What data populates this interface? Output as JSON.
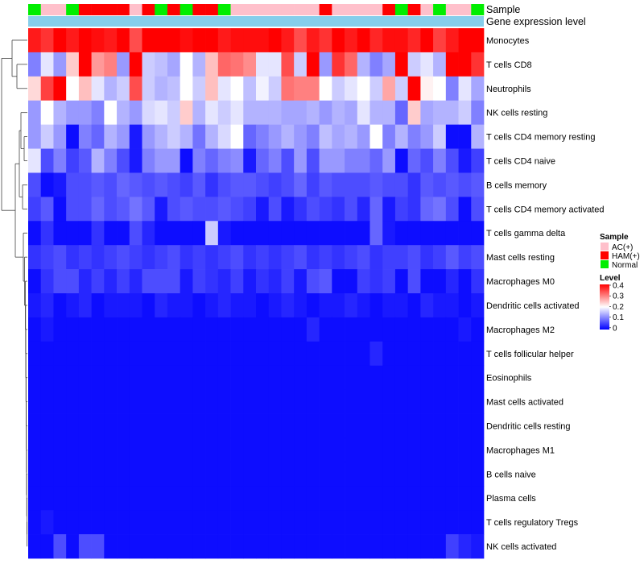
{
  "chart_data": {
    "type": "heatmap",
    "title": "",
    "annotations": {
      "sample_label": "Sample",
      "gene_expression_label": "Gene expression level"
    },
    "rows": [
      "Monocytes",
      "T cells CD8",
      "Neutrophils",
      "NK cells resting",
      "T cells CD4 memory resting",
      "T cells CD4 naive",
      "B cells memory",
      "T cells CD4 memory activated",
      "T cells gamma delta",
      "Mast cells resting",
      "Macrophages M0",
      "Dendritic cells activated",
      "Macrophages M2",
      "T cells follicular helper",
      "Eosinophils",
      "Mast cells activated",
      "Dendritic cells resting",
      "Macrophages M1",
      "B cells naive",
      "Plasma cells",
      "T cells regulatory  Tregs",
      "NK cells activated"
    ],
    "sample_groups": [
      "N",
      "AC",
      "AC",
      "N",
      "HAM",
      "HAM",
      "HAM",
      "HAM",
      "AC",
      "HAM",
      "N",
      "HAM",
      "N",
      "HAM",
      "HAM",
      "N",
      "AC",
      "AC",
      "AC",
      "AC",
      "AC",
      "AC",
      "AC",
      "HAM",
      "AC",
      "AC",
      "AC",
      "AC",
      "HAM",
      "N",
      "HAM",
      "AC",
      "N",
      "AC",
      "AC",
      "N"
    ],
    "values": [
      [
        0.38,
        0.36,
        0.4,
        0.38,
        0.4,
        0.39,
        0.38,
        0.4,
        0.34,
        0.4,
        0.41,
        0.4,
        0.39,
        0.4,
        0.41,
        0.38,
        0.39,
        0.39,
        0.39,
        0.4,
        0.38,
        0.34,
        0.38,
        0.36,
        0.4,
        0.38,
        0.41,
        0.37,
        0.39,
        0.39,
        0.37,
        0.4,
        0.35,
        0.38,
        0.41,
        0.4
      ],
      [
        0.1,
        0.18,
        0.12,
        0.24,
        0.42,
        0.28,
        0.3,
        0.12,
        0.42,
        0.16,
        0.15,
        0.13,
        0.2,
        0.14,
        0.25,
        0.32,
        0.31,
        0.29,
        0.18,
        0.18,
        0.34,
        0.16,
        0.4,
        0.12,
        0.36,
        0.32,
        0.14,
        0.1,
        0.13,
        0.41,
        0.16,
        0.18,
        0.14,
        0.42,
        0.42,
        0.36
      ],
      [
        0.23,
        0.35,
        0.4,
        0.2,
        0.25,
        0.18,
        0.14,
        0.16,
        0.34,
        0.16,
        0.14,
        0.15,
        0.2,
        0.16,
        0.25,
        0.18,
        0.2,
        0.15,
        0.19,
        0.16,
        0.31,
        0.3,
        0.3,
        0.2,
        0.16,
        0.18,
        0.2,
        0.16,
        0.27,
        0.16,
        0.42,
        0.21,
        0.2,
        0.1,
        0.18,
        0.13
      ],
      [
        0.12,
        0.2,
        0.14,
        0.12,
        0.12,
        0.1,
        0.2,
        0.14,
        0.12,
        0.17,
        0.18,
        0.16,
        0.24,
        0.14,
        0.18,
        0.16,
        0.18,
        0.14,
        0.14,
        0.14,
        0.13,
        0.13,
        0.14,
        0.12,
        0.14,
        0.13,
        0.18,
        0.14,
        0.14,
        0.08,
        0.24,
        0.13,
        0.14,
        0.14,
        0.16,
        0.1
      ],
      [
        0.12,
        0.16,
        0.12,
        0.01,
        0.1,
        0.08,
        0.14,
        0.12,
        0.02,
        0.12,
        0.14,
        0.16,
        0.14,
        0.09,
        0.14,
        0.17,
        0.2,
        0.08,
        0.1,
        0.12,
        0.14,
        0.12,
        0.1,
        0.15,
        0.13,
        0.14,
        0.12,
        0.2,
        0.1,
        0.14,
        0.1,
        0.12,
        0.16,
        0.01,
        0.01,
        0.14
      ],
      [
        0.18,
        0.06,
        0.1,
        0.05,
        0.07,
        0.14,
        0.1,
        0.06,
        0.02,
        0.1,
        0.12,
        0.12,
        0.01,
        0.1,
        0.08,
        0.1,
        0.11,
        0.02,
        0.08,
        0.1,
        0.06,
        0.12,
        0.06,
        0.12,
        0.12,
        0.1,
        0.1,
        0.08,
        0.12,
        0.01,
        0.08,
        0.06,
        0.1,
        0.06,
        0.02,
        0.05
      ],
      [
        0.06,
        0.01,
        0.02,
        0.06,
        0.06,
        0.07,
        0.06,
        0.08,
        0.07,
        0.06,
        0.07,
        0.06,
        0.05,
        0.07,
        0.04,
        0.06,
        0.07,
        0.07,
        0.06,
        0.05,
        0.06,
        0.08,
        0.05,
        0.07,
        0.06,
        0.06,
        0.06,
        0.07,
        0.06,
        0.06,
        0.04,
        0.07,
        0.06,
        0.07,
        0.06,
        0.07
      ],
      [
        0.05,
        0.07,
        0.01,
        0.06,
        0.06,
        0.08,
        0.06,
        0.07,
        0.09,
        0.07,
        0.02,
        0.06,
        0.07,
        0.06,
        0.06,
        0.07,
        0.06,
        0.05,
        0.02,
        0.06,
        0.02,
        0.04,
        0.06,
        0.05,
        0.04,
        0.06,
        0.03,
        0.08,
        0.02,
        0.05,
        0.04,
        0.08,
        0.09,
        0.06,
        0.01,
        0.06
      ],
      [
        0.01,
        0.04,
        0.01,
        0.01,
        0.01,
        0.04,
        0.01,
        0.01,
        0.06,
        0.03,
        0.01,
        0.01,
        0.01,
        0.01,
        0.16,
        0.02,
        0.01,
        0.01,
        0.01,
        0.01,
        0.01,
        0.01,
        0.01,
        0.01,
        0.01,
        0.01,
        0.01,
        0.08,
        0.02,
        0.01,
        0.01,
        0.01,
        0.01,
        0.01,
        0.01,
        0.01
      ],
      [
        0.04,
        0.05,
        0.06,
        0.04,
        0.05,
        0.04,
        0.05,
        0.06,
        0.05,
        0.04,
        0.05,
        0.06,
        0.04,
        0.05,
        0.04,
        0.05,
        0.06,
        0.04,
        0.05,
        0.04,
        0.05,
        0.06,
        0.04,
        0.05,
        0.04,
        0.05,
        0.06,
        0.04,
        0.05,
        0.05,
        0.06,
        0.04,
        0.05,
        0.07,
        0.05,
        0.06
      ],
      [
        0.01,
        0.04,
        0.06,
        0.06,
        0.03,
        0.05,
        0.03,
        0.05,
        0.03,
        0.06,
        0.06,
        0.06,
        0.02,
        0.05,
        0.04,
        0.03,
        0.05,
        0.02,
        0.04,
        0.03,
        0.05,
        0.02,
        0.06,
        0.07,
        0.01,
        0.01,
        0.05,
        0.04,
        0.05,
        0.01,
        0.06,
        0.01,
        0.01,
        0.03,
        0.01,
        0.04
      ],
      [
        0.02,
        0.03,
        0.01,
        0.02,
        0.03,
        0.01,
        0.02,
        0.02,
        0.02,
        0.01,
        0.03,
        0.02,
        0.02,
        0.01,
        0.02,
        0.03,
        0.02,
        0.02,
        0.01,
        0.02,
        0.03,
        0.02,
        0.01,
        0.02,
        0.02,
        0.03,
        0.02,
        0.01,
        0.02,
        0.02,
        0.01,
        0.03,
        0.02,
        0.02,
        0.01,
        0.02
      ],
      [
        0.01,
        0.02,
        0.01,
        0.01,
        0.01,
        0.01,
        0.01,
        0.01,
        0.01,
        0.01,
        0.01,
        0.01,
        0.01,
        0.01,
        0.01,
        0.01,
        0.01,
        0.01,
        0.01,
        0.01,
        0.01,
        0.01,
        0.03,
        0.01,
        0.01,
        0.01,
        0.01,
        0.01,
        0.01,
        0.01,
        0.01,
        0.01,
        0.01,
        0.01,
        0.02,
        0.01
      ],
      [
        0.01,
        0.01,
        0.01,
        0.01,
        0.01,
        0.01,
        0.01,
        0.01,
        0.01,
        0.01,
        0.01,
        0.01,
        0.01,
        0.01,
        0.01,
        0.01,
        0.01,
        0.01,
        0.01,
        0.01,
        0.01,
        0.01,
        0.01,
        0.01,
        0.01,
        0.01,
        0.01,
        0.03,
        0.01,
        0.01,
        0.01,
        0.01,
        0.01,
        0.01,
        0.01,
        0.01
      ],
      [
        0.01,
        0.01,
        0.01,
        0.01,
        0.01,
        0.01,
        0.01,
        0.01,
        0.01,
        0.01,
        0.01,
        0.01,
        0.01,
        0.01,
        0.01,
        0.01,
        0.01,
        0.01,
        0.01,
        0.01,
        0.01,
        0.01,
        0.01,
        0.01,
        0.01,
        0.01,
        0.01,
        0.01,
        0.01,
        0.01,
        0.01,
        0.01,
        0.01,
        0.01,
        0.01,
        0.01
      ],
      [
        0.01,
        0.01,
        0.01,
        0.01,
        0.01,
        0.01,
        0.01,
        0.01,
        0.01,
        0.01,
        0.01,
        0.01,
        0.01,
        0.01,
        0.01,
        0.01,
        0.01,
        0.01,
        0.01,
        0.01,
        0.01,
        0.01,
        0.01,
        0.01,
        0.01,
        0.01,
        0.01,
        0.01,
        0.01,
        0.01,
        0.01,
        0.01,
        0.01,
        0.01,
        0.01,
        0.01
      ],
      [
        0.01,
        0.01,
        0.01,
        0.01,
        0.01,
        0.01,
        0.01,
        0.01,
        0.01,
        0.01,
        0.01,
        0.01,
        0.01,
        0.01,
        0.01,
        0.01,
        0.01,
        0.01,
        0.01,
        0.01,
        0.01,
        0.01,
        0.01,
        0.01,
        0.01,
        0.01,
        0.01,
        0.01,
        0.01,
        0.01,
        0.01,
        0.01,
        0.01,
        0.01,
        0.01,
        0.01
      ],
      [
        0.01,
        0.01,
        0.01,
        0.01,
        0.01,
        0.01,
        0.01,
        0.01,
        0.01,
        0.01,
        0.01,
        0.01,
        0.01,
        0.01,
        0.01,
        0.01,
        0.01,
        0.01,
        0.01,
        0.01,
        0.01,
        0.01,
        0.01,
        0.01,
        0.01,
        0.01,
        0.01,
        0.01,
        0.01,
        0.01,
        0.01,
        0.01,
        0.01,
        0.01,
        0.01,
        0.01
      ],
      [
        0.01,
        0.01,
        0.01,
        0.01,
        0.01,
        0.01,
        0.01,
        0.01,
        0.01,
        0.01,
        0.01,
        0.01,
        0.01,
        0.01,
        0.01,
        0.01,
        0.01,
        0.01,
        0.01,
        0.01,
        0.01,
        0.01,
        0.01,
        0.01,
        0.01,
        0.01,
        0.01,
        0.01,
        0.01,
        0.01,
        0.01,
        0.01,
        0.01,
        0.01,
        0.01,
        0.01
      ],
      [
        0.01,
        0.01,
        0.01,
        0.01,
        0.01,
        0.01,
        0.01,
        0.01,
        0.01,
        0.01,
        0.01,
        0.01,
        0.01,
        0.01,
        0.01,
        0.01,
        0.01,
        0.01,
        0.01,
        0.01,
        0.01,
        0.01,
        0.01,
        0.01,
        0.01,
        0.01,
        0.01,
        0.01,
        0.01,
        0.01,
        0.01,
        0.01,
        0.01,
        0.01,
        0.01,
        0.01
      ],
      [
        0.01,
        0.02,
        0.01,
        0.01,
        0.01,
        0.01,
        0.01,
        0.01,
        0.01,
        0.01,
        0.01,
        0.01,
        0.01,
        0.01,
        0.01,
        0.01,
        0.01,
        0.01,
        0.01,
        0.01,
        0.01,
        0.01,
        0.01,
        0.01,
        0.01,
        0.01,
        0.01,
        0.01,
        0.01,
        0.01,
        0.01,
        0.01,
        0.01,
        0.01,
        0.01,
        0.01
      ],
      [
        0.01,
        0.01,
        0.06,
        0.01,
        0.06,
        0.06,
        0.01,
        0.01,
        0.01,
        0.01,
        0.01,
        0.01,
        0.01,
        0.01,
        0.01,
        0.01,
        0.01,
        0.01,
        0.01,
        0.01,
        0.01,
        0.01,
        0.01,
        0.01,
        0.01,
        0.01,
        0.01,
        0.01,
        0.01,
        0.01,
        0.01,
        0.01,
        0.01,
        0.05,
        0.03,
        0.02
      ]
    ],
    "legend": {
      "sample_title": "Sample",
      "groups": [
        {
          "key": "AC",
          "label": "AC(+)",
          "color": "#FFC0CB"
        },
        {
          "key": "HAM",
          "label": "HAM(+)",
          "color": "#FF0000"
        },
        {
          "key": "N",
          "label": "Normal",
          "color": "#00EE00"
        }
      ],
      "level_title": "Level",
      "level_ticks": [
        "0.4",
        "0.3",
        "0.2",
        "0.1",
        "0"
      ],
      "level_range": [
        0,
        0.4
      ]
    },
    "colors": {
      "low": "#0000FF",
      "mid": "#FFFFFF",
      "high": "#FF0000",
      "gene_bar": "#87CEEB"
    }
  }
}
